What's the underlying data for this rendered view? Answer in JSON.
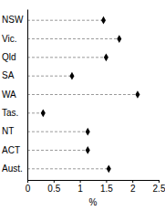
{
  "chart_data": {
    "type": "dot",
    "orientation": "horizontal",
    "categories": [
      "NSW",
      "Vic.",
      "Qld",
      "SA",
      "WA",
      "Tas.",
      "NT",
      "ACT",
      "Aust."
    ],
    "values": [
      1.45,
      1.75,
      1.5,
      0.85,
      2.1,
      0.3,
      1.15,
      1.15,
      1.55
    ],
    "x_label": "%",
    "xlim": [
      0,
      2.5
    ],
    "xticks": [
      0,
      0.5,
      1,
      1.5,
      2,
      2.5
    ],
    "color": "#000000",
    "marker": "diamond",
    "line_style": "dashed",
    "grid": false
  }
}
